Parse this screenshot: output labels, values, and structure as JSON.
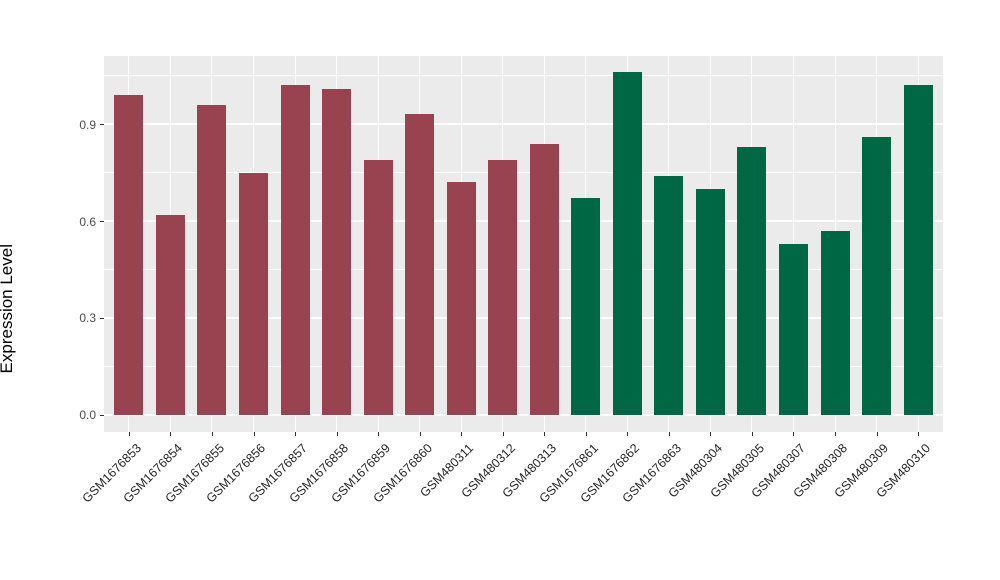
{
  "figure": {
    "background": "#FFFFFF",
    "panel_background": "#EBEBEB",
    "grid_color": "#FFFFFF",
    "axis_tick_color": "#333333",
    "y_tick_text_color": "#4D4D4D",
    "x_tick_text_color": "#262626"
  },
  "chart_data": {
    "type": "bar",
    "title": "",
    "xlabel": "",
    "ylabel": "Expression Level",
    "categories": [
      "GSM1676853",
      "GSM1676854",
      "GSM1676855",
      "GSM1676856",
      "GSM1676857",
      "GSM1676858",
      "GSM1676859",
      "GSM1676860",
      "GSM480311",
      "GSM480312",
      "GSM480313",
      "GSM1676861",
      "GSM1676862",
      "GSM1676863",
      "GSM480304",
      "GSM480305",
      "GSM480307",
      "GSM480308",
      "GSM480309",
      "GSM480310"
    ],
    "values": [
      0.99,
      0.62,
      0.96,
      0.75,
      1.02,
      1.01,
      0.79,
      0.93,
      0.72,
      0.79,
      0.84,
      0.67,
      1.06,
      0.74,
      0.7,
      0.83,
      0.53,
      0.57,
      0.86,
      1.02
    ],
    "bar_groups": [
      "g1",
      "g1",
      "g1",
      "g1",
      "g1",
      "g1",
      "g1",
      "g1",
      "g1",
      "g1",
      "g1",
      "g2",
      "g2",
      "g2",
      "g2",
      "g2",
      "g2",
      "g2",
      "g2",
      "g2"
    ],
    "group_colors": {
      "g1": "#9A4350",
      "g2": "#006745"
    },
    "y_ticks": [
      0.0,
      0.3,
      0.6,
      0.9
    ],
    "y_tick_labels": [
      "0.0",
      "0.3",
      "0.6",
      "0.9"
    ],
    "y_minor_ticks": [
      0.15,
      0.45,
      0.75,
      1.05
    ],
    "y_range": [
      -0.053,
      1.111
    ],
    "grid": true,
    "legend": "none"
  }
}
